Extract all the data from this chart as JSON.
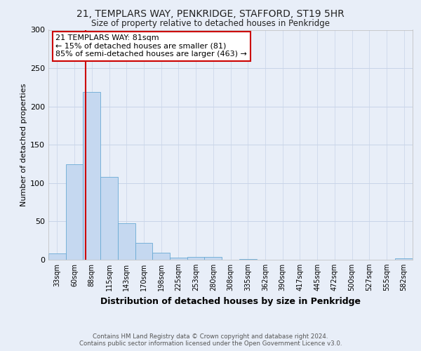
{
  "title_line1": "21, TEMPLARS WAY, PENKRIDGE, STAFFORD, ST19 5HR",
  "title_line2": "Size of property relative to detached houses in Penkridge",
  "xlabel": "Distribution of detached houses by size in Penkridge",
  "ylabel": "Number of detached properties",
  "footer_line1": "Contains HM Land Registry data © Crown copyright and database right 2024.",
  "footer_line2": "Contains public sector information licensed under the Open Government Licence v3.0.",
  "categories": [
    "33sqm",
    "60sqm",
    "88sqm",
    "115sqm",
    "143sqm",
    "170sqm",
    "198sqm",
    "225sqm",
    "253sqm",
    "280sqm",
    "308sqm",
    "335sqm",
    "362sqm",
    "390sqm",
    "417sqm",
    "445sqm",
    "472sqm",
    "500sqm",
    "527sqm",
    "555sqm",
    "582sqm"
  ],
  "bar_values": [
    8,
    125,
    219,
    108,
    48,
    22,
    9,
    3,
    4,
    4,
    0,
    1,
    0,
    0,
    0,
    0,
    0,
    0,
    0,
    0,
    2
  ],
  "bar_color": "#c5d8f0",
  "bar_edge_color": "#6aaad4",
  "annotation_box_text": "21 TEMPLARS WAY: 81sqm\n← 15% of detached houses are smaller (81)\n85% of semi-detached houses are larger (463) →",
  "annotation_box_color": "#ffffff",
  "annotation_box_edge_color": "#cc0000",
  "vline_x": 1.65,
  "vline_color": "#cc0000",
  "ylim": [
    0,
    300
  ],
  "yticks": [
    0,
    50,
    100,
    150,
    200,
    250,
    300
  ],
  "grid_color": "#c8d4e8",
  "background_color": "#e8eef8",
  "plot_background": "#e8eef8"
}
